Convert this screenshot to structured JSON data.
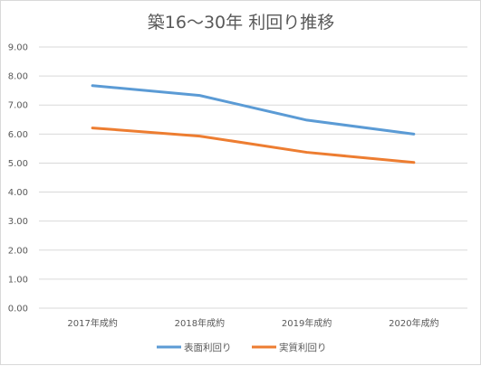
{
  "chart_data": {
    "type": "line",
    "title": "築16～30年  利回り推移",
    "categories": [
      "2017年成約",
      "2018年成約",
      "2019年成約",
      "2020年成約"
    ],
    "series": [
      {
        "name": "表面利回り",
        "values": [
          7.67,
          7.33,
          6.48,
          6.0
        ],
        "color": "#5b9bd5"
      },
      {
        "name": "実質利回り",
        "values": [
          6.21,
          5.93,
          5.37,
          5.02
        ],
        "color": "#ed7d31"
      }
    ],
    "ylim": [
      0,
      9
    ],
    "yticks": [
      "0.00",
      "1.00",
      "2.00",
      "3.00",
      "4.00",
      "5.00",
      "6.00",
      "7.00",
      "8.00",
      "9.00"
    ],
    "grid": true,
    "legend_position": "bottom"
  }
}
